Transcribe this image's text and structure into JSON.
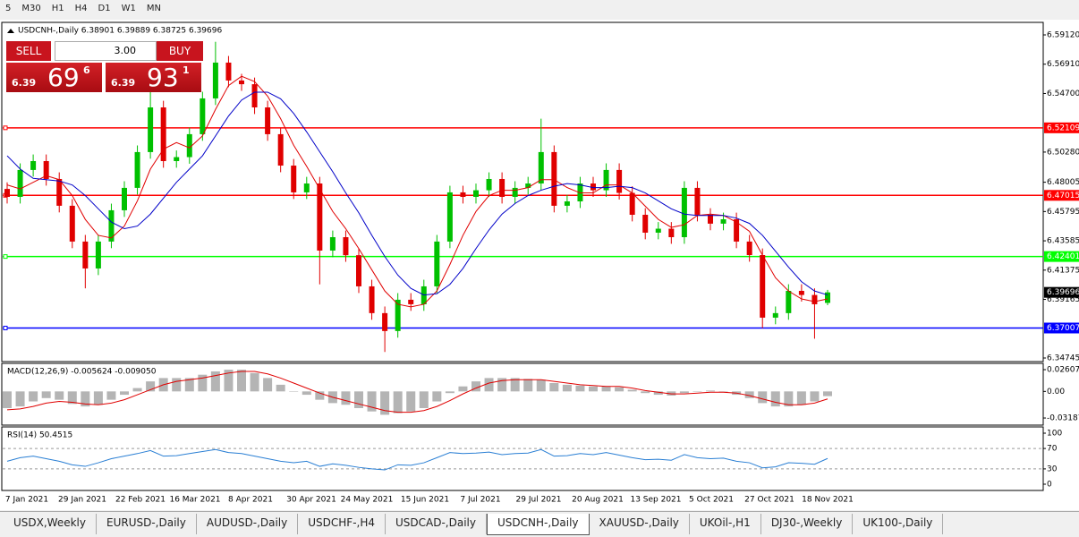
{
  "toolbar": {
    "periods": [
      "5",
      "M30",
      "H1",
      "H4",
      "D1",
      "W1",
      "MN"
    ]
  },
  "trade_panel": {
    "sell": "SELL",
    "buy": "BUY",
    "volume": "3.00",
    "bid": {
      "big": "6.39",
      "main": "69",
      "small": "6"
    },
    "ask": {
      "big": "6.39",
      "main": "93",
      "small": "1"
    }
  },
  "chart_data": [
    {
      "type": "candlestick",
      "title": "USDCNH-,Daily 6.38901 6.39889 6.38725 6.39696",
      "up_color": "#00c000",
      "down_color": "#e00000",
      "open": [
        6.475,
        6.469,
        6.4893,
        6.496,
        6.4825,
        6.4623,
        6.4353,
        6.415,
        6.4353,
        6.4589,
        6.4758,
        6.5028,
        6.5365,
        6.496,
        6.499,
        6.5163,
        6.5433,
        6.5703,
        6.5568,
        6.554,
        6.5365,
        6.5163,
        6.4926,
        6.4724,
        6.4791,
        6.4285,
        6.4386,
        6.425,
        6.4015,
        6.3813,
        6.3678,
        6.3914,
        6.388,
        6.4015,
        6.4353,
        6.4724,
        6.469,
        6.474,
        6.4825,
        6.469,
        6.4758,
        6.4791,
        6.5028,
        6.4623,
        6.4656,
        6.4791,
        6.474,
        6.4893,
        6.472,
        6.4555,
        6.442,
        6.445,
        6.4386,
        6.4758,
        6.4555,
        6.4488,
        6.4521,
        6.4353,
        6.4251,
        6.3779,
        6.3813,
        6.3981,
        6.395,
        6.38901
      ],
      "high": [
        6.48,
        6.4943,
        6.501,
        6.501,
        6.4875,
        6.4673,
        6.4403,
        6.4403,
        6.4639,
        6.4808,
        6.5078,
        6.55,
        6.5415,
        6.504,
        6.5213,
        6.5483,
        6.586,
        6.5753,
        6.5618,
        6.559,
        6.5415,
        6.5213,
        6.4976,
        6.4841,
        6.4841,
        6.4436,
        6.4436,
        6.43,
        6.4065,
        6.3863,
        6.3964,
        6.3964,
        6.4065,
        6.4403,
        6.4774,
        6.4774,
        6.479,
        6.4875,
        6.4875,
        6.4808,
        6.4841,
        6.528,
        6.5078,
        6.4706,
        6.4841,
        6.4841,
        6.4943,
        6.4943,
        6.477,
        6.4605,
        6.45,
        6.45,
        6.4808,
        6.4808,
        6.4605,
        6.4571,
        6.4571,
        6.4403,
        6.4301,
        6.3863,
        6.4031,
        6.4031,
        6.4,
        6.39889
      ],
      "low": [
        6.464,
        6.464,
        6.4843,
        6.4775,
        6.4573,
        6.4303,
        6.4,
        6.41,
        6.4303,
        6.4539,
        6.4708,
        6.4978,
        6.491,
        6.491,
        6.494,
        6.5113,
        6.5383,
        6.5518,
        6.549,
        6.5315,
        6.5113,
        6.4876,
        6.4674,
        6.4674,
        6.403,
        6.4235,
        6.42,
        6.3965,
        6.3763,
        6.352,
        6.3628,
        6.383,
        6.383,
        6.3965,
        6.4303,
        6.464,
        6.464,
        6.469,
        6.464,
        6.464,
        6.4708,
        6.4741,
        6.4573,
        6.4573,
        6.4606,
        6.469,
        6.469,
        6.467,
        6.4505,
        6.437,
        6.437,
        6.4336,
        6.4336,
        6.4505,
        6.4438,
        6.4438,
        6.4303,
        6.4201,
        6.37,
        6.3729,
        6.3763,
        6.39,
        6.362,
        6.38725
      ],
      "close": [
        6.469,
        6.4893,
        6.496,
        6.4825,
        6.4623,
        6.4353,
        6.415,
        6.4353,
        6.4589,
        6.4758,
        6.5028,
        6.5365,
        6.496,
        6.499,
        6.5163,
        6.5433,
        6.5703,
        6.5568,
        6.554,
        6.5365,
        6.5163,
        6.4926,
        6.4724,
        6.4791,
        6.4285,
        6.4386,
        6.425,
        6.4015,
        6.3813,
        6.3678,
        6.3914,
        6.388,
        6.4015,
        6.4353,
        6.4724,
        6.469,
        6.474,
        6.4825,
        6.469,
        6.4758,
        6.4791,
        6.5028,
        6.4623,
        6.4656,
        6.4791,
        6.474,
        6.4893,
        6.472,
        6.4555,
        6.442,
        6.445,
        6.4386,
        6.4758,
        6.4555,
        6.4488,
        6.4521,
        6.4353,
        6.4251,
        6.3779,
        6.3813,
        6.3981,
        6.395,
        6.388,
        6.39696
      ],
      "moving_averages": [
        {
          "color": "#e00000",
          "values": [
            6.478,
            6.475,
            6.48,
            6.485,
            6.482,
            6.47,
            6.452,
            6.44,
            6.438,
            6.447,
            6.466,
            6.49,
            6.505,
            6.51,
            6.506,
            6.515,
            6.535,
            6.553,
            6.56,
            6.556,
            6.545,
            6.528,
            6.508,
            6.492,
            6.475,
            6.458,
            6.445,
            6.43,
            6.414,
            6.398,
            6.388,
            6.386,
            6.388,
            6.398,
            6.418,
            6.44,
            6.458,
            6.47,
            6.474,
            6.474,
            6.476,
            6.482,
            6.482,
            6.476,
            6.472,
            6.472,
            6.478,
            6.478,
            6.472,
            6.462,
            6.452,
            6.446,
            6.448,
            6.455,
            6.456,
            6.455,
            6.45,
            6.443,
            6.425,
            6.408,
            6.398,
            6.392,
            6.39,
            6.392
          ]
        },
        {
          "color": "#0000c8",
          "values": [
            6.5,
            6.49,
            6.483,
            6.482,
            6.481,
            6.478,
            6.47,
            6.46,
            6.45,
            6.445,
            6.447,
            6.456,
            6.468,
            6.48,
            6.49,
            6.5,
            6.515,
            6.53,
            6.542,
            6.548,
            6.548,
            6.543,
            6.532,
            6.518,
            6.503,
            6.488,
            6.472,
            6.457,
            6.44,
            6.424,
            6.41,
            6.4,
            6.395,
            6.396,
            6.403,
            6.415,
            6.43,
            6.444,
            6.456,
            6.464,
            6.47,
            6.474,
            6.477,
            6.479,
            6.478,
            6.476,
            6.476,
            6.477,
            6.476,
            6.472,
            6.466,
            6.46,
            6.456,
            6.455,
            6.455,
            6.455,
            6.453,
            6.449,
            6.44,
            6.428,
            6.416,
            6.405,
            6.398,
            6.395
          ]
        }
      ],
      "hlines": [
        {
          "value": 6.52109,
          "color": "#ff0000"
        },
        {
          "value": 6.47015,
          "color": "#ff0000"
        },
        {
          "value": 6.42401,
          "color": "#00ff00"
        },
        {
          "value": 6.37007,
          "color": "#0000ff"
        }
      ],
      "current_price": 6.39696,
      "ylim": [
        6.34475,
        6.60065
      ],
      "yticks": [
        {
          "value": 6.5912,
          "label": "6.59120"
        },
        {
          "value": 6.5691,
          "label": "6.56910"
        },
        {
          "value": 6.547,
          "label": "6.54700"
        },
        {
          "value": 6.5028,
          "label": "6.50280"
        },
        6.48005,
        6.45795,
        6.43585,
        6.41375,
        6.39165,
        6.34745
      ],
      "x_labels": [
        "7 Jan 2021",
        "29 Jan 2021",
        "22 Feb 2021",
        "16 Mar 2021",
        "8 Apr 2021",
        "30 Apr 2021",
        "24 May 2021",
        "15 Jun 2021",
        "7 Jul 2021",
        "29 Jul 2021",
        "20 Aug 2021",
        "13 Sep 2021",
        "5 Oct 2021",
        "27 Oct 2021",
        "18 Nov 2021"
      ]
    },
    {
      "type": "macd",
      "title": "MACD(12,26,9) -0.005624 -0.009050",
      "hist_color": "#b4b4b4",
      "signal_color": "#e00000",
      "hist": [
        -0.02,
        -0.018,
        -0.012,
        -0.008,
        -0.01,
        -0.015,
        -0.018,
        -0.016,
        -0.01,
        -0.004,
        0.004,
        0.012,
        0.016,
        0.016,
        0.016,
        0.02,
        0.024,
        0.026,
        0.026,
        0.022,
        0.016,
        0.008,
        0.0,
        -0.004,
        -0.01,
        -0.014,
        -0.016,
        -0.02,
        -0.024,
        -0.028,
        -0.026,
        -0.024,
        -0.02,
        -0.012,
        -0.002,
        0.006,
        0.012,
        0.016,
        0.016,
        0.016,
        0.015,
        0.014,
        0.01,
        0.008,
        0.007,
        0.006,
        0.006,
        0.005,
        0.002,
        -0.002,
        -0.004,
        -0.005,
        -0.002,
        0.0,
        0.001,
        0.0,
        -0.004,
        -0.008,
        -0.014,
        -0.018,
        -0.018,
        -0.016,
        -0.012,
        -0.005624
      ],
      "signal": [
        -0.022,
        -0.021,
        -0.018,
        -0.014,
        -0.012,
        -0.013,
        -0.015,
        -0.016,
        -0.014,
        -0.01,
        -0.004,
        0.002,
        0.008,
        0.012,
        0.014,
        0.016,
        0.019,
        0.022,
        0.024,
        0.024,
        0.021,
        0.016,
        0.01,
        0.004,
        -0.002,
        -0.007,
        -0.011,
        -0.015,
        -0.019,
        -0.023,
        -0.025,
        -0.025,
        -0.023,
        -0.018,
        -0.011,
        -0.003,
        0.004,
        0.01,
        0.013,
        0.014,
        0.014,
        0.014,
        0.012,
        0.01,
        0.008,
        0.007,
        0.006,
        0.006,
        0.004,
        0.001,
        -0.001,
        -0.003,
        -0.003,
        -0.002,
        -0.001,
        -0.001,
        -0.002,
        -0.005,
        -0.009,
        -0.013,
        -0.016,
        -0.016,
        -0.014,
        -0.00905
      ],
      "ylim": [
        -0.0404,
        0.0336
      ],
      "yticks": [
        0.02607,
        {
          "value": 0,
          "label": "0.00"
        },
        -0.03187
      ]
    },
    {
      "type": "rsi",
      "title": "RSI(14) 50.4515",
      "color": "#2a7fd4",
      "values": [
        45,
        52,
        55,
        50,
        45,
        38,
        35,
        42,
        50,
        55,
        60,
        66,
        55,
        56,
        60,
        64,
        68,
        62,
        60,
        55,
        50,
        45,
        42,
        45,
        35,
        40,
        37,
        33,
        30,
        28,
        38,
        37,
        42,
        52,
        62,
        60,
        61,
        63,
        58,
        60,
        61,
        68,
        55,
        56,
        60,
        58,
        62,
        57,
        52,
        48,
        49,
        47,
        58,
        52,
        50,
        51,
        45,
        42,
        32,
        34,
        42,
        41,
        39,
        50.4515
      ],
      "levels": [
        70,
        30
      ],
      "ylim": [
        -12.3,
        112.3
      ],
      "yticks": [
        100,
        70,
        30,
        0
      ]
    }
  ],
  "tabs": [
    "USDX,Weekly",
    "EURUSD-,Daily",
    "AUDUSD-,Daily",
    "USDCHF-,H4",
    "USDCAD-,Daily",
    "USDCNH-,Daily",
    "XAUUSD-,Daily",
    "UKOil-,H1",
    "DJ30-,Weekly",
    "UK100-,Daily"
  ],
  "active_tab": 5
}
